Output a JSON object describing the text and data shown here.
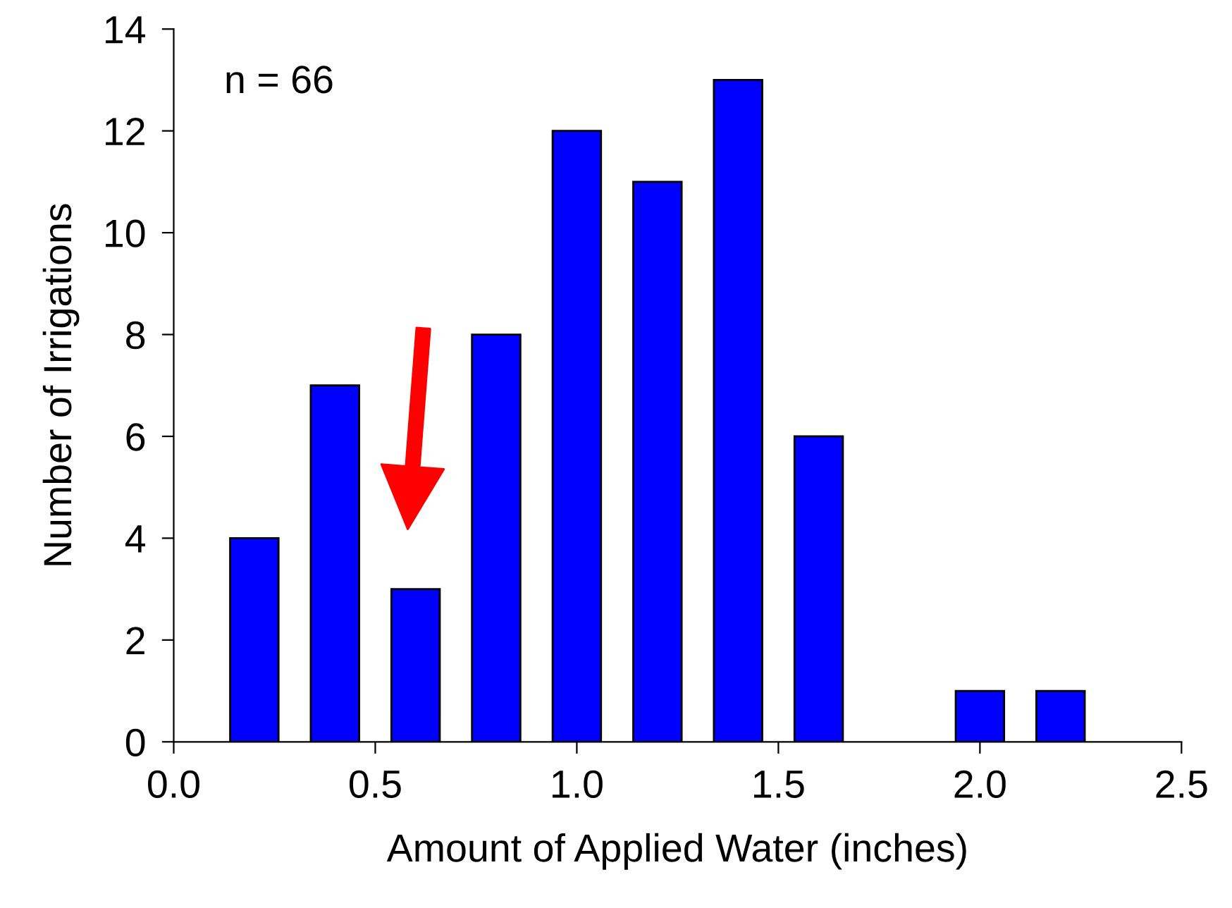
{
  "chart_data": {
    "type": "bar",
    "xlabel": "Amount of Applied Water (inches)",
    "ylabel": "Number of Irrigations",
    "x": [
      0.2,
      0.4,
      0.6,
      0.8,
      1.0,
      1.2,
      1.4,
      1.6,
      2.0,
      2.2
    ],
    "values": [
      4,
      7,
      3,
      8,
      12,
      11,
      13,
      6,
      1,
      1
    ],
    "color": "#0000ff",
    "xlim": [
      0,
      2.5
    ],
    "xticks": [
      {
        "value": 0,
        "label": "0.0"
      },
      0.5,
      {
        "value": 1,
        "label": "1.0"
      },
      1.5,
      {
        "value": 2,
        "label": "2.0"
      },
      2.5
    ],
    "ylim": [
      0,
      14
    ],
    "yticks": [
      0,
      2,
      4,
      6,
      8,
      10,
      12,
      14
    ],
    "annotations": [
      "n = 66"
    ],
    "grid": false,
    "legend": false
  }
}
